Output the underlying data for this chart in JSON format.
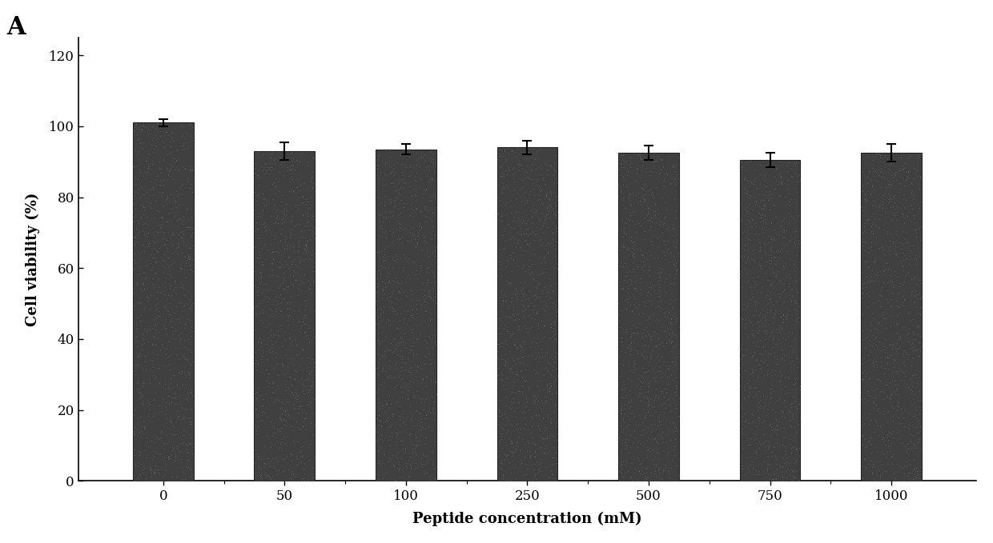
{
  "categories": [
    "0",
    "50",
    "100",
    "250",
    "500",
    "750",
    "1000"
  ],
  "values": [
    101.0,
    93.0,
    93.5,
    94.0,
    92.5,
    90.5,
    92.5
  ],
  "errors": [
    1.0,
    2.5,
    1.5,
    2.0,
    2.0,
    2.0,
    2.5
  ],
  "bar_color": "#404040",
  "bar_edge_color": "#222222",
  "xlabel": "Peptide concentration (mM)",
  "ylabel": "Cell viability (%)",
  "panel_label": "A",
  "ylim": [
    0,
    125
  ],
  "yticks": [
    0,
    20,
    40,
    60,
    80,
    100,
    120
  ],
  "label_fontsize": 13,
  "tick_fontsize": 12,
  "panel_label_fontsize": 22,
  "bar_width": 0.5,
  "background_color": "#ffffff",
  "figure_bg": "#ffffff"
}
